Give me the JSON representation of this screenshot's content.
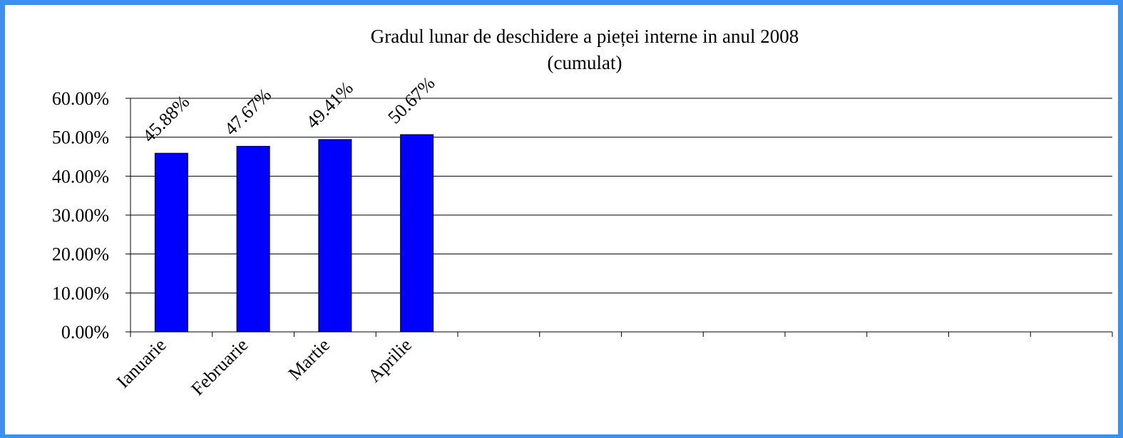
{
  "chart_data": {
    "type": "bar",
    "title": "Gradul lunar de deschidere a pieței interne in anul 2008",
    "subtitle": "(cumulat)",
    "categories": [
      "Ianuarie",
      "Februarie",
      "Martie",
      "Aprilie",
      null,
      null,
      null,
      null,
      null,
      null,
      null,
      null
    ],
    "values": [
      45.88,
      47.67,
      49.41,
      50.67,
      null,
      null,
      null,
      null,
      null,
      null,
      null,
      null
    ],
    "value_labels": [
      "45.88%",
      "47.67%",
      "49.41%",
      "50.67%",
      null,
      null,
      null,
      null,
      null,
      null,
      null,
      null
    ],
    "color": "#0000ff",
    "ylim": [
      0,
      60
    ],
    "yticks": [
      {
        "value": 0,
        "label": "0.00%"
      },
      {
        "value": 10,
        "label": "10.00%"
      },
      {
        "value": 20,
        "label": "20.00%"
      },
      {
        "value": 30,
        "label": "30.00%"
      },
      {
        "value": 40,
        "label": "40.00%"
      },
      {
        "value": 50,
        "label": "50.00%"
      },
      {
        "value": 60,
        "label": "60.00%"
      }
    ],
    "grid": true
  }
}
